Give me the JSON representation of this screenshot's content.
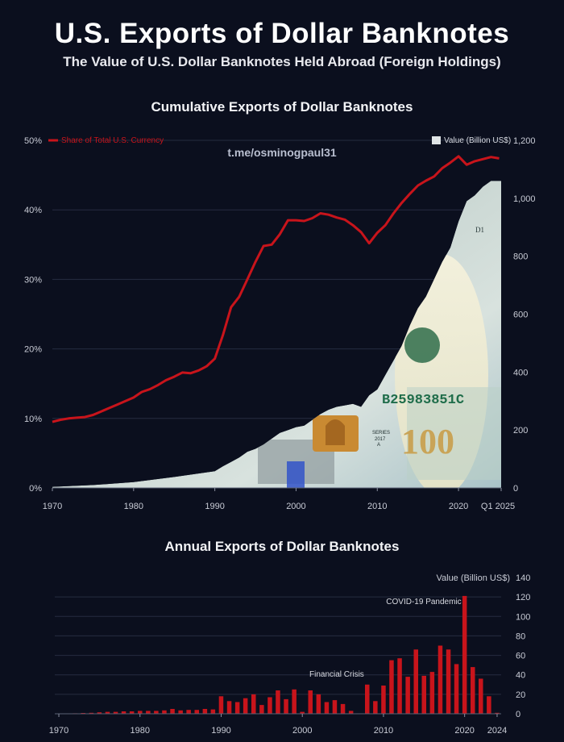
{
  "title": "U.S. Exports of Dollar Banknotes",
  "subtitle": "The Value of U.S. Dollar Banknotes Held Abroad (Foreign Holdings)",
  "watermark": "t.me/osminogpaul31",
  "colors": {
    "background": "#0b0f1e",
    "share_line": "#c8141b",
    "bars": "#c8141b",
    "value_area": "#dfe4e6",
    "banknote_green": "#9fb7a8",
    "banknote_orange": "#c98a32"
  },
  "chart_data": [
    {
      "type": "line",
      "title": "Cumulative Exports of Dollar Banknotes",
      "x_tick_labels": [
        "1970",
        "1980",
        "1990",
        "2000",
        "2010",
        "2020",
        "Q1 2025"
      ],
      "y_left_ticks": [
        "0%",
        "10%",
        "20%",
        "30%",
        "40%",
        "50%"
      ],
      "y_right_ticks": [
        "0",
        "200",
        "400",
        "600",
        "800",
        "1,000",
        "1,200"
      ],
      "ylim_left": [
        0,
        50
      ],
      "ylim_right": [
        0,
        1200
      ],
      "xlim": [
        1970,
        2025.25
      ],
      "legend": {
        "share_label": "Share of Total U.S. Currency",
        "value_label": "Value (Billion US$)"
      },
      "series": [
        {
          "name": "Share of Total U.S. Currency",
          "axis": "left",
          "unit": "%",
          "x": [
            1970,
            1971,
            1972,
            1973,
            1974,
            1975,
            1976,
            1977,
            1978,
            1979,
            1980,
            1981,
            1982,
            1983,
            1984,
            1985,
            1986,
            1987,
            1988,
            1989,
            1990,
            1991,
            1992,
            1993,
            1994,
            1995,
            1996,
            1997,
            1998,
            1999,
            2000,
            2001,
            2002,
            2003,
            2004,
            2005,
            2006,
            2007,
            2008,
            2009,
            2010,
            2011,
            2012,
            2013,
            2014,
            2015,
            2016,
            2017,
            2018,
            2019,
            2020,
            2021,
            2022,
            2023,
            2024,
            2025
          ],
          "values": [
            9.5,
            9.8,
            10.0,
            10.1,
            10.2,
            10.5,
            11.0,
            11.5,
            12.0,
            12.5,
            13.0,
            13.8,
            14.2,
            14.8,
            15.5,
            16.0,
            16.6,
            16.5,
            16.9,
            17.5,
            18.6,
            22.0,
            26.0,
            27.5,
            30.0,
            32.5,
            34.8,
            35.0,
            36.5,
            38.5,
            38.5,
            38.4,
            38.8,
            39.5,
            39.3,
            38.9,
            38.6,
            37.8,
            36.8,
            35.2,
            36.7,
            37.8,
            39.5,
            41.0,
            42.3,
            43.5,
            44.2,
            44.8,
            46.0,
            46.8,
            47.7,
            46.5,
            47.0,
            47.3,
            47.6,
            47.4
          ]
        },
        {
          "name": "Value (Billion US$)",
          "axis": "right",
          "unit": "billion US$",
          "x": [
            1970,
            1975,
            1980,
            1985,
            1990,
            1991,
            1992,
            1993,
            1994,
            1995,
            1996,
            1997,
            1998,
            1999,
            2000,
            2001,
            2002,
            2003,
            2004,
            2005,
            2006,
            2007,
            2008,
            2009,
            2010,
            2011,
            2012,
            2013,
            2014,
            2015,
            2016,
            2017,
            2018,
            2019,
            2020,
            2021,
            2022,
            2023,
            2024,
            2025
          ],
          "values": [
            4,
            10,
            20,
            38,
            58,
            75,
            90,
            105,
            125,
            135,
            150,
            170,
            190,
            200,
            210,
            215,
            235,
            255,
            270,
            280,
            285,
            290,
            280,
            320,
            340,
            390,
            440,
            490,
            560,
            620,
            660,
            720,
            780,
            830,
            920,
            990,
            1010,
            1040,
            1060,
            1060
          ]
        }
      ],
      "image_overlay": {
        "banknote_serial": "B25983851C",
        "banknote_denomination": "100",
        "banknote_series": "SERIES",
        "banknote_year": "2017",
        "banknote_letter": "A",
        "banknote_corner": "D1"
      }
    },
    {
      "type": "bar",
      "title": "Annual Exports of Dollar Banknotes",
      "ylabel": "Value (Billion US$)",
      "x_tick_labels": [
        "1970",
        "1980",
        "1990",
        "2000",
        "2010",
        "2020",
        "2024"
      ],
      "y_ticks": [
        "0",
        "20",
        "40",
        "60",
        "80",
        "100",
        "120",
        "140"
      ],
      "ylim": [
        0,
        140
      ],
      "xlim": [
        1969.5,
        2024.5
      ],
      "x": [
        1970,
        1971,
        1972,
        1973,
        1974,
        1975,
        1976,
        1977,
        1978,
        1979,
        1980,
        1981,
        1982,
        1983,
        1984,
        1985,
        1986,
        1987,
        1988,
        1989,
        1990,
        1991,
        1992,
        1993,
        1994,
        1995,
        1996,
        1997,
        1998,
        1999,
        2000,
        2001,
        2002,
        2003,
        2004,
        2005,
        2006,
        2007,
        2008,
        2009,
        2010,
        2011,
        2012,
        2013,
        2014,
        2015,
        2016,
        2017,
        2018,
        2019,
        2020,
        2021,
        2022,
        2023,
        2024
      ],
      "values": [
        0.3,
        0.4,
        0.5,
        0.8,
        1,
        1.5,
        2,
        2,
        2.5,
        2.5,
        3,
        3,
        3,
        3.5,
        5,
        3.5,
        4,
        4,
        5,
        4.5,
        18,
        13,
        12,
        16,
        20,
        9,
        17,
        24,
        15,
        25,
        2,
        24,
        20,
        12,
        14,
        10,
        3,
        0,
        30,
        13,
        29,
        55,
        57,
        38,
        66,
        39,
        43,
        70,
        66,
        51,
        121,
        48,
        36,
        18,
        1
      ],
      "annotations": [
        {
          "label": "COVID-19 Pandemic",
          "x": 2020
        },
        {
          "label": "Financial Crisis",
          "x": 2008
        }
      ]
    }
  ]
}
